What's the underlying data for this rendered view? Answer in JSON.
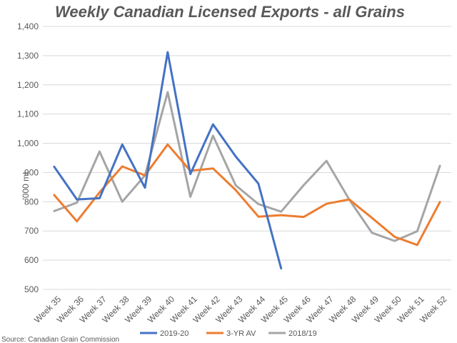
{
  "chart_data": {
    "type": "line",
    "title": "Weekly Canadian Licensed Exports - all Grains",
    "ylabel": "'000 mt",
    "xlabel": "",
    "source": "Source: Canadian Grain Commission",
    "ylim": [
      500,
      1400
    ],
    "yticks": [
      500,
      600,
      700,
      800,
      900,
      1000,
      1100,
      1200,
      1300,
      1400
    ],
    "ytick_labels": [
      "500",
      "600",
      "700",
      "800",
      "900",
      "1,000",
      "1,100",
      "1,200",
      "1,300",
      "1,400"
    ],
    "grid": true,
    "legend": "bottom",
    "categories": [
      "Week 35",
      "Week 36",
      "Week 37",
      "Week 38",
      "Week 39",
      "Week 40",
      "Week 41",
      "Week 42",
      "Week 43",
      "Week 44",
      "Week 45",
      "Week 46",
      "Week 47",
      "Week 48",
      "Week 49",
      "Week 50",
      "Week 51",
      "Week 52"
    ],
    "series": [
      {
        "name": "2019-20",
        "color": "#4472c4",
        "values": [
          920,
          808,
          812,
          996,
          848,
          1312,
          895,
          1065,
          955,
          862,
          572,
          null,
          null,
          null,
          null,
          null,
          null,
          null
        ]
      },
      {
        "name": "3-YR AV",
        "color": "#ed7d31",
        "values": [
          823,
          733,
          832,
          921,
          890,
          996,
          906,
          914,
          840,
          749,
          754,
          748,
          793,
          808,
          745,
          680,
          652,
          799
        ]
      },
      {
        "name": "2018/19",
        "color": "#a5a5a5",
        "values": [
          768,
          797,
          972,
          800,
          890,
          1175,
          817,
          1026,
          856,
          792,
          766,
          857,
          940,
          808,
          694,
          666,
          699,
          923
        ]
      }
    ]
  }
}
